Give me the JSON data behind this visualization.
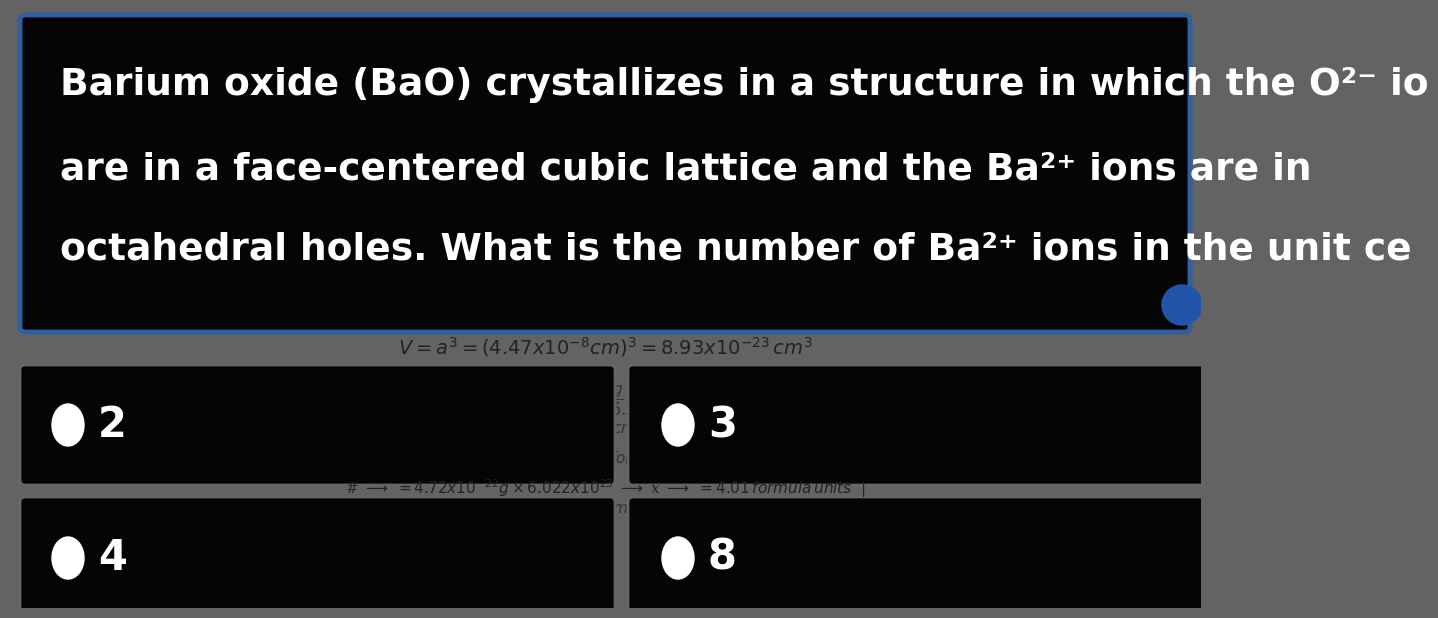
{
  "bg_outer": "#636363",
  "bg_question_box": "#050505",
  "question_box_border": "#3060a0",
  "question_text_color": "#ffffff",
  "question_lines": [
    "Barium oxide (BaO) crystallizes in a structure in which the O²⁻ io",
    "are in a face-centered cubic lattice and the Ba²⁺ ions are in",
    "octahedral holes. What is the number of Ba²⁺ ions in the unit ce"
  ],
  "answer_box_bg": "#050505",
  "answer_text_color": "#ffffff",
  "answers": [
    "2",
    "3",
    "4",
    "8"
  ],
  "circle_color": "#ffffff",
  "bg_gray": "#636363",
  "formula_color": "#222222",
  "blue_circle_color": "#2255aa",
  "between_text_color": "#333333"
}
